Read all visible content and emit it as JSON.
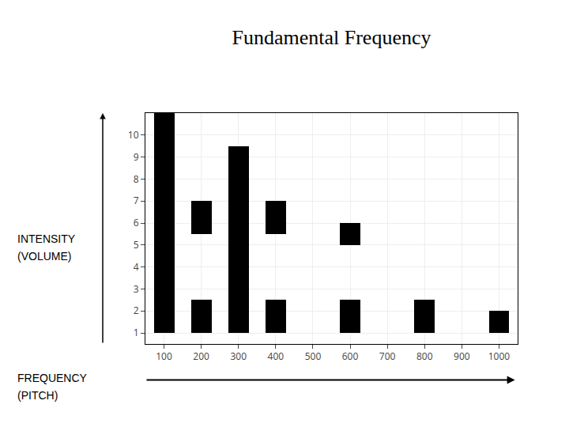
{
  "chart_data": {
    "type": "bar",
    "title": "Fundamental Frequency",
    "x": [
      100,
      200,
      200,
      300,
      400,
      400,
      600,
      600,
      800,
      1000
    ],
    "values": [
      10,
      1.5,
      1.5,
      8.5,
      1.5,
      1.5,
      1.0,
      1.5,
      1.5,
      1.0
    ],
    "base": [
      1,
      5.5,
      1,
      1,
      5.5,
      1,
      5.0,
      1,
      1,
      1
    ],
    "color": "#000000",
    "xlim": [
      50,
      1050
    ],
    "xticks": [
      100,
      200,
      300,
      400,
      500,
      600,
      700,
      800,
      900,
      1000
    ],
    "ylim": [
      0.5,
      11.0
    ],
    "yticks": [
      1,
      2,
      3,
      4,
      5,
      6,
      7,
      8,
      9,
      10
    ],
    "grid": true,
    "annotations": [
      "INTENSITY",
      "(VOLUME)",
      "FREQUENCY",
      "(PITCH)"
    ]
  }
}
